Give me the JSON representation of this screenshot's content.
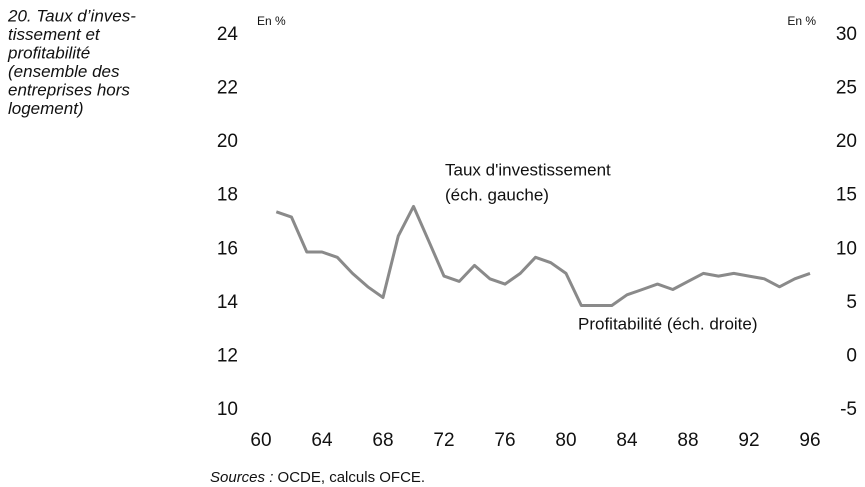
{
  "chart_data": {
    "type": "line",
    "title": [
      "20. Taux d’inves-",
      "tissement et",
      "profitabilité",
      "(ensemble des",
      "entreprises hors",
      "logement)"
    ],
    "ylabel": "En %",
    "y2label": "En %",
    "x": [
      61,
      62,
      63,
      64,
      65,
      66,
      67,
      68,
      69,
      70,
      71,
      72,
      73,
      74,
      75,
      76,
      77,
      78,
      79,
      80,
      81,
      82,
      83,
      84,
      85,
      86,
      87,
      88,
      89,
      90,
      91,
      92,
      93,
      94,
      95,
      96
    ],
    "series": [
      {
        "color": "#8a8a8a",
        "values": [
          17.4,
          17.2,
          15.9,
          15.9,
          15.7,
          15.1,
          14.6,
          14.2,
          16.5,
          17.6,
          16.3,
          15.0,
          14.8,
          15.4,
          14.9,
          14.7,
          15.1,
          15.7,
          15.5,
          15.1,
          13.9,
          13.9,
          13.9,
          14.3,
          14.5,
          14.7,
          14.5,
          14.8,
          15.1,
          15.0,
          15.1,
          15.0,
          14.9,
          14.6,
          14.9,
          15.1
        ]
      }
    ],
    "xlim": [
      60,
      96
    ],
    "xticks": [
      60,
      64,
      68,
      72,
      76,
      80,
      84,
      88,
      92,
      96
    ],
    "ylim": [
      10,
      24
    ],
    "yticks": [
      10,
      12,
      14,
      16,
      18,
      20,
      22,
      24
    ],
    "y2lim": [
      -5,
      30
    ],
    "y2ticks": [
      -5,
      0,
      5,
      10,
      15,
      20,
      25,
      30
    ],
    "grid": false,
    "annotations": [
      {
        "lines": [
          "Taux d'investissement",
          "(éch. gauche)"
        ]
      },
      {
        "lines": [
          "Profitabilité (éch. droite)"
        ]
      }
    ],
    "source": {
      "label": "Sources :",
      "text": "OCDE, calculs OFCE."
    }
  }
}
